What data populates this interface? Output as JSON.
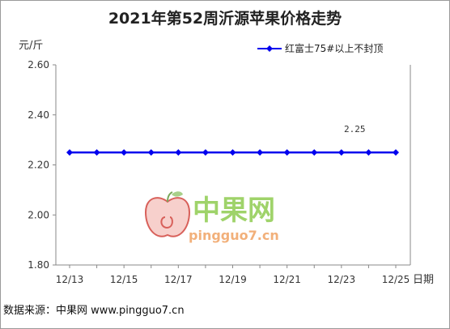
{
  "chart_data": {
    "type": "line",
    "title": "2021年第52周沂源苹果价格走势",
    "ylabel": "元/斤",
    "xlabel": "日期",
    "ylim": [
      1.8,
      2.6
    ],
    "yticks": [
      "1.80",
      "2.00",
      "2.20",
      "2.40",
      "2.60"
    ],
    "x": [
      "12/13",
      "12/14",
      "12/15",
      "12/16",
      "12/17",
      "12/18",
      "12/19",
      "12/20",
      "12/21",
      "12/22",
      "12/23",
      "12/24",
      "12/25"
    ],
    "xtick_labels": [
      "12/13",
      "12/15",
      "12/17",
      "12/19",
      "12/21",
      "12/23",
      "12/25"
    ],
    "series": [
      {
        "name": "红富士75#以上不封顶",
        "color": "#0000ee",
        "values": [
          2.25,
          2.25,
          2.25,
          2.25,
          2.25,
          2.25,
          2.25,
          2.25,
          2.25,
          2.25,
          2.25,
          2.25,
          2.25
        ]
      }
    ],
    "annotation": "2.25",
    "legend_position": "top-right",
    "grid": false
  },
  "watermark": {
    "name": "中果网",
    "url": "pingguo7.cn"
  },
  "source_text": "数据来源：中果网 www.pingguo7.cn"
}
